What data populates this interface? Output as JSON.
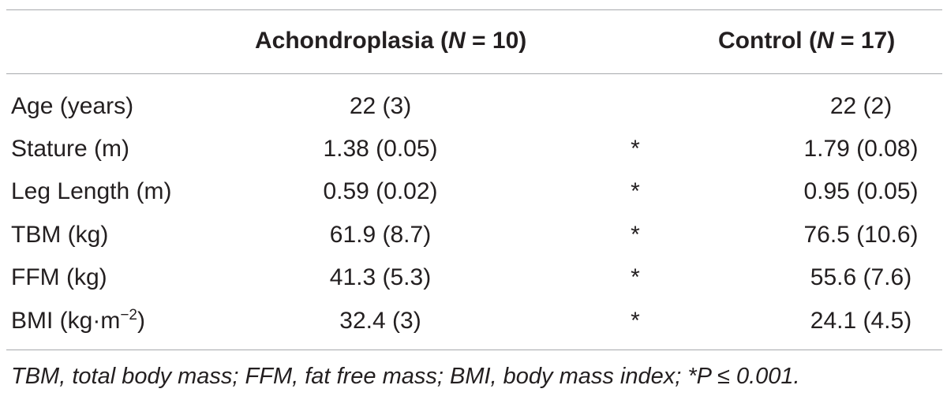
{
  "table": {
    "headers": {
      "achondroplasia": {
        "name": "Achondroplasia (",
        "n_symbol": "N",
        "n_value": " = 10)"
      },
      "control": {
        "name": "Control (",
        "n_symbol": "N",
        "n_value": " = 17)"
      }
    },
    "rows": [
      {
        "label": "Age (years)",
        "achondroplasia": "22 (3)",
        "significance": "",
        "control": "22 (2)"
      },
      {
        "label": "Stature (m)",
        "achondroplasia": "1.38 (0.05)",
        "significance": "*",
        "control": "1.79 (0.08)"
      },
      {
        "label": "Leg Length (m)",
        "achondroplasia": "0.59 (0.02)",
        "significance": "*",
        "control": "0.95 (0.05)"
      },
      {
        "label": "TBM (kg)",
        "achondroplasia": "61.9 (8.7)",
        "significance": "*",
        "control": "76.5 (10.6)"
      },
      {
        "label": "FFM (kg)",
        "achondroplasia": "41.3 (5.3)",
        "significance": "*",
        "control": "55.6 (7.6)"
      },
      {
        "label": "BMI (kg·m",
        "label_sup": "−2",
        "label_suffix": ")",
        "achondroplasia": "32.4 (3)",
        "significance": "*",
        "control": "24.1 (4.5)"
      }
    ],
    "footnote": "TBM, total body mass; FFM, fat free mass; BMI, body mass index; *P ≤ 0.001."
  }
}
